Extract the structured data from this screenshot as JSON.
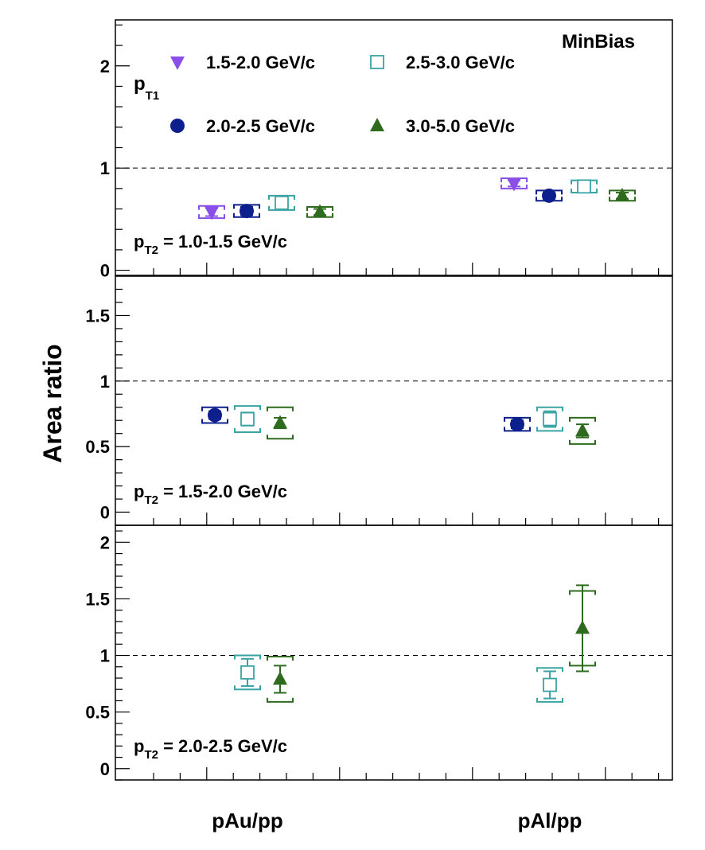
{
  "chart_data": {
    "type": "scatter",
    "ylabel": "Area ratio",
    "categories": [
      "pAu/pp",
      "pAl/pp"
    ],
    "annotation": "MinBias",
    "legend": {
      "title": "p",
      "title_sub": "T1",
      "entries": [
        {
          "label": "1.5-2.0 GeV/c",
          "marker": "triangle-down",
          "color": "#8a4fe8"
        },
        {
          "label": "2.5-3.0 GeV/c",
          "marker": "open-square",
          "color": "#3aa3a3"
        },
        {
          "label": "2.0-2.5 GeV/c",
          "marker": "circle",
          "color": "#0d1f8c"
        },
        {
          "label": "3.0-5.0 GeV/c",
          "marker": "triangle-up",
          "color": "#2f6b1f"
        }
      ]
    },
    "reference_line": 1,
    "panels": [
      {
        "label_main": "p",
        "label_sub": "T2",
        "label_rest": " = 1.0-1.5 GeV/c",
        "ylim": [
          -0.05,
          2.45
        ],
        "yticks": [
          0,
          1,
          2
        ],
        "ytick_labels": [
          "0",
          "1",
          "2"
        ],
        "series": [
          {
            "marker": "triangle-down",
            "color": "#8a4fe8",
            "points": [
              {
                "x": "pAu/pp",
                "y": 0.57,
                "err": 0.04,
                "sys": 0.06
              },
              {
                "x": "pAl/pp",
                "y": 0.85,
                "err": 0.03,
                "sys": 0.05
              }
            ]
          },
          {
            "marker": "circle",
            "color": "#0d1f8c",
            "points": [
              {
                "x": "pAu/pp",
                "y": 0.58,
                "err": 0.04,
                "sys": 0.06
              },
              {
                "x": "pAl/pp",
                "y": 0.73,
                "err": 0.03,
                "sys": 0.05
              }
            ]
          },
          {
            "marker": "open-square",
            "color": "#3aa3a3",
            "points": [
              {
                "x": "pAu/pp",
                "y": 0.66,
                "err": 0.05,
                "sys": 0.07
              },
              {
                "x": "pAl/pp",
                "y": 0.82,
                "err": 0.04,
                "sys": 0.06
              }
            ]
          },
          {
            "marker": "triangle-up",
            "color": "#2f6b1f",
            "points": [
              {
                "x": "pAu/pp",
                "y": 0.57,
                "err": 0.03,
                "sys": 0.05
              },
              {
                "x": "pAl/pp",
                "y": 0.73,
                "err": 0.03,
                "sys": 0.05
              }
            ]
          }
        ]
      },
      {
        "label_main": "p",
        "label_sub": "T2",
        "label_rest": " = 1.5-2.0 GeV/c",
        "ylim": [
          -0.1,
          1.8
        ],
        "yticks": [
          0,
          0.5,
          1,
          1.5
        ],
        "ytick_labels": [
          "0",
          "0.5",
          "1",
          "1.5"
        ],
        "series": [
          {
            "marker": "circle",
            "color": "#0d1f8c",
            "points": [
              {
                "x": "pAu/pp",
                "y": 0.74,
                "err": 0.03,
                "sys": 0.06
              },
              {
                "x": "pAl/pp",
                "y": 0.67,
                "err": 0.03,
                "sys": 0.05
              }
            ]
          },
          {
            "marker": "open-square",
            "color": "#3aa3a3",
            "points": [
              {
                "x": "pAu/pp",
                "y": 0.71,
                "err": 0.05,
                "sys": 0.1
              },
              {
                "x": "pAl/pp",
                "y": 0.71,
                "err": 0.06,
                "sys": 0.09
              }
            ]
          },
          {
            "marker": "triangle-up",
            "color": "#2f6b1f",
            "points": [
              {
                "x": "pAu/pp",
                "y": 0.68,
                "err": 0.04,
                "sys": 0.12
              },
              {
                "x": "pAl/pp",
                "y": 0.62,
                "err": 0.05,
                "sys": 0.1
              }
            ]
          }
        ]
      },
      {
        "label_main": "p",
        "label_sub": "T2",
        "label_rest": " = 2.0-2.5 GeV/c",
        "ylim": [
          -0.1,
          2.15
        ],
        "yticks": [
          0,
          0.5,
          1,
          1.5,
          2
        ],
        "ytick_labels": [
          "0",
          "0.5",
          "1",
          "1.5",
          "2"
        ],
        "series": [
          {
            "marker": "open-square",
            "color": "#3aa3a3",
            "points": [
              {
                "x": "pAu/pp",
                "y": 0.85,
                "err": 0.12,
                "sys": 0.15
              },
              {
                "x": "pAl/pp",
                "y": 0.74,
                "err": 0.12,
                "sys": 0.15
              }
            ]
          },
          {
            "marker": "triangle-up",
            "color": "#2f6b1f",
            "points": [
              {
                "x": "pAu/pp",
                "y": 0.79,
                "err": 0.12,
                "sys": 0.2
              },
              {
                "x": "pAl/pp",
                "y": 1.24,
                "err": 0.38,
                "sys": 0.33
              }
            ]
          }
        ]
      }
    ]
  }
}
